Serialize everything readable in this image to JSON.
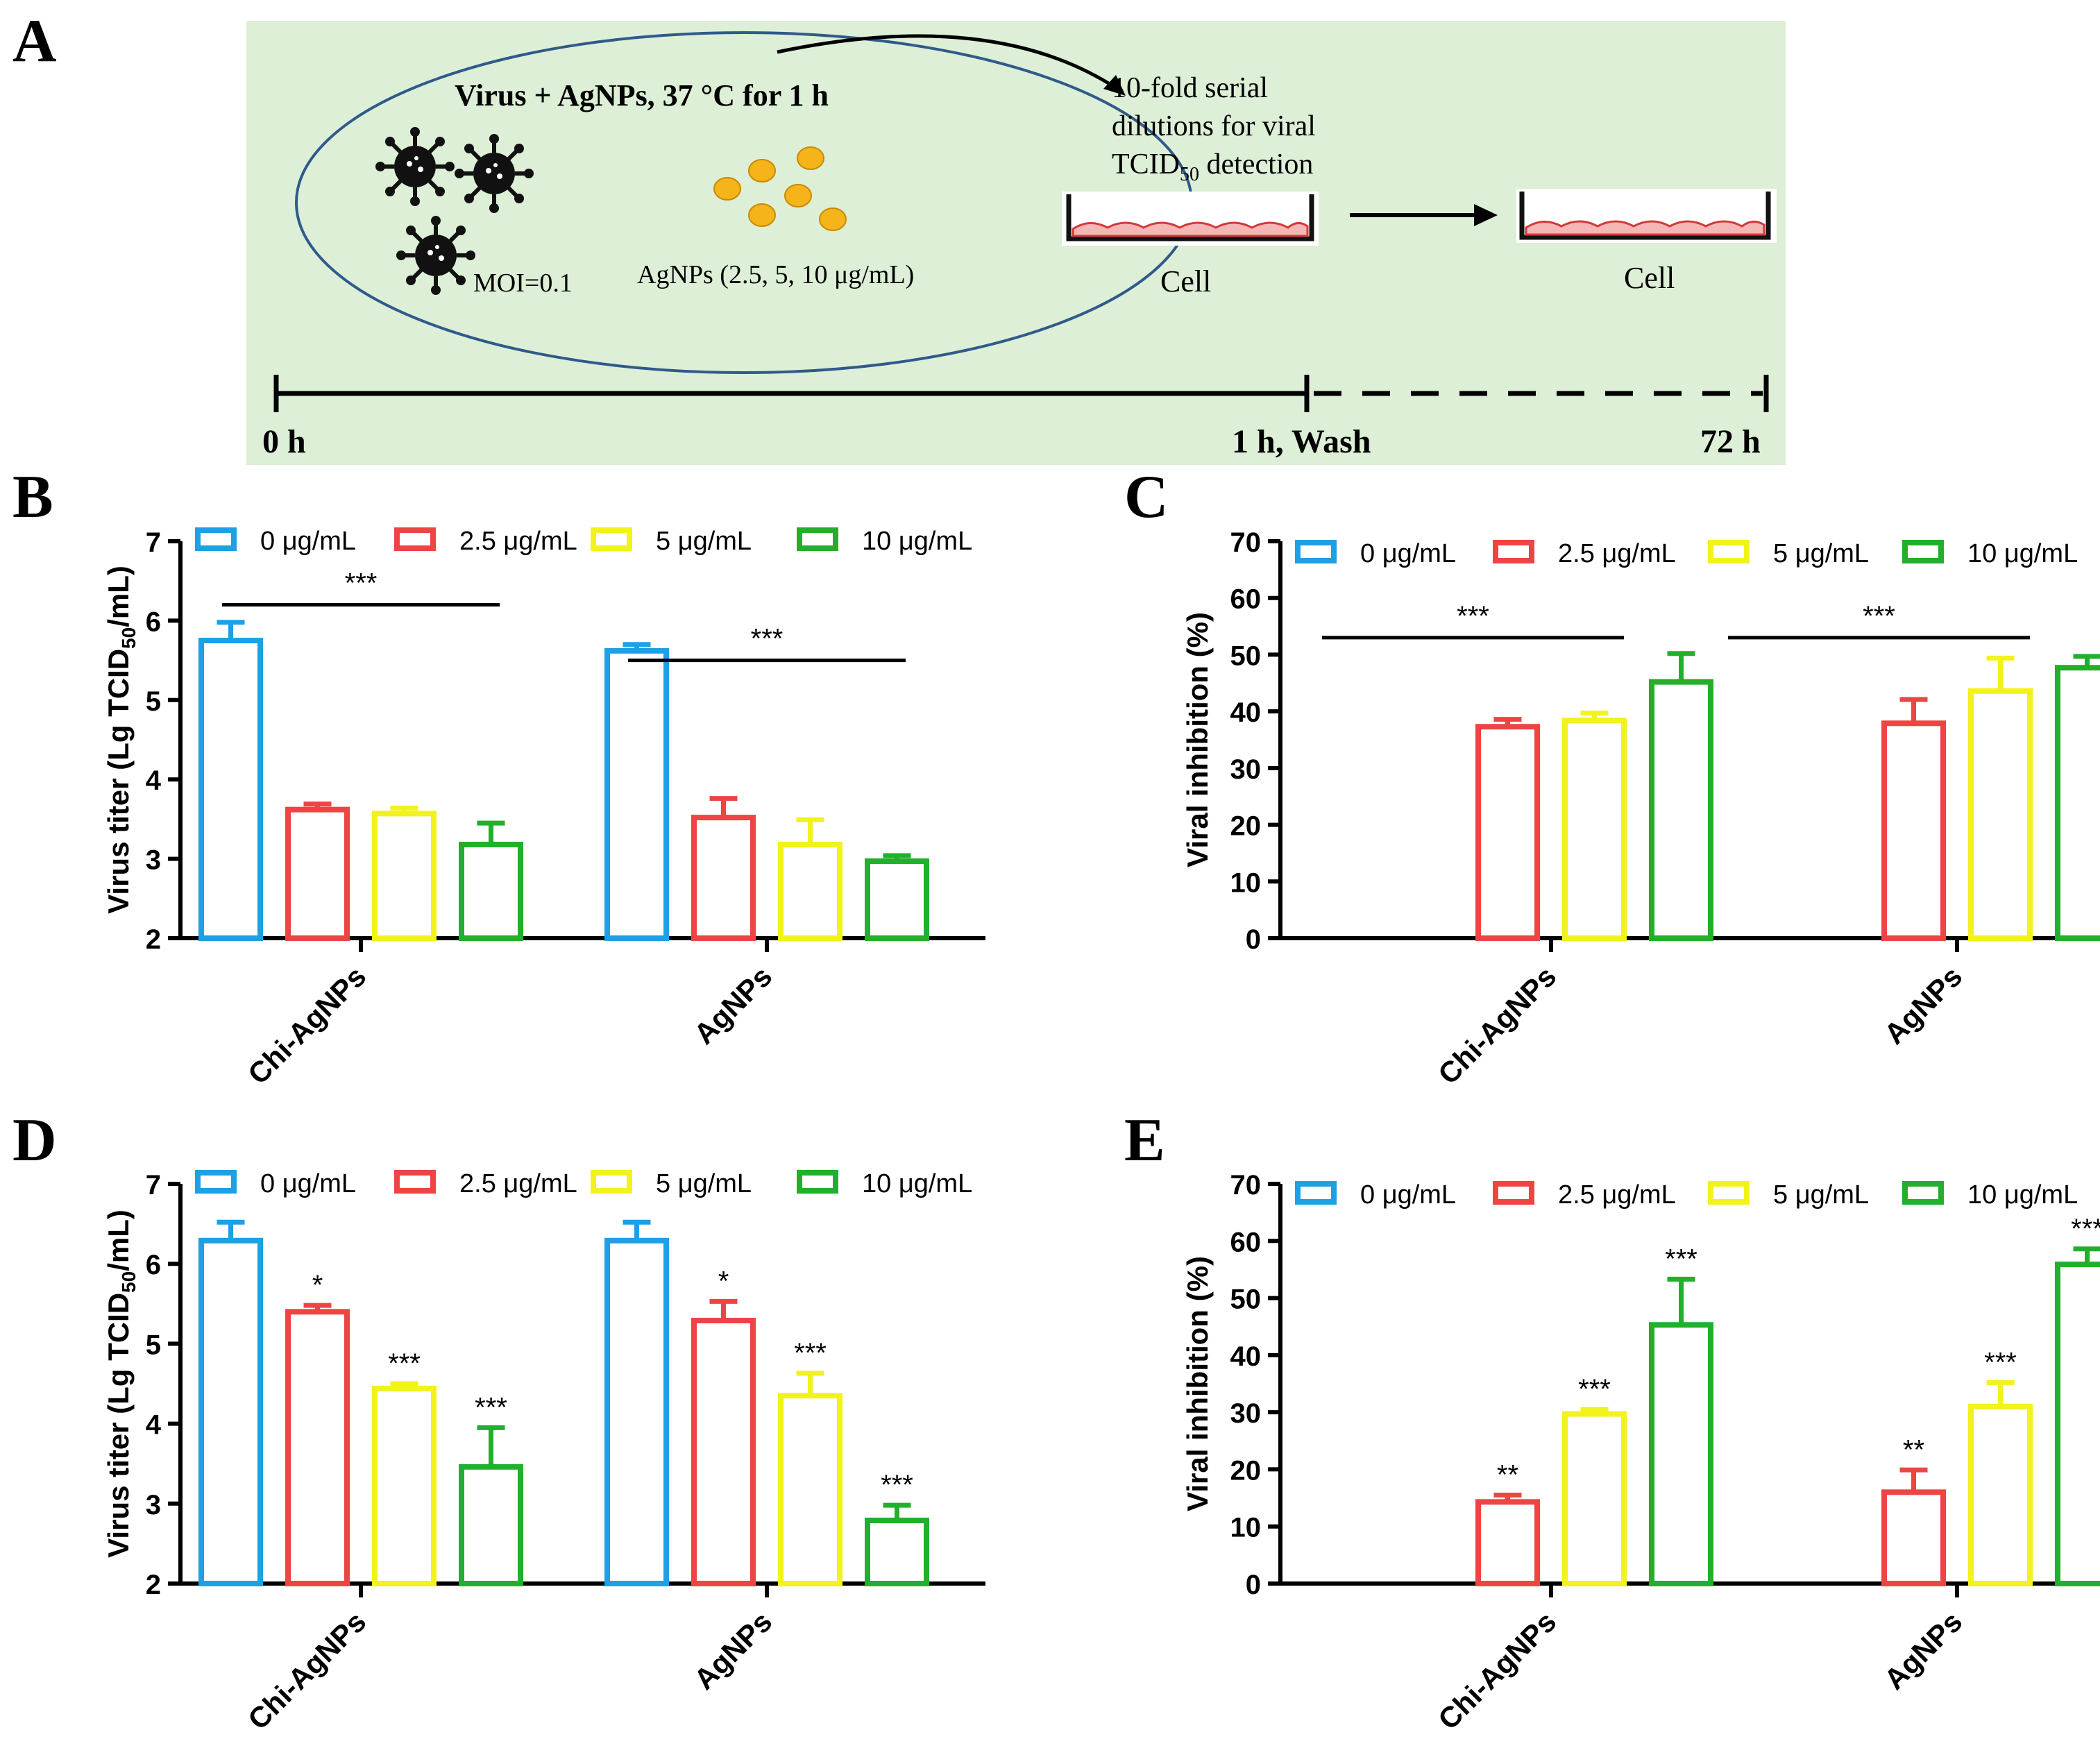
{
  "panel_letters": {
    "a": "A",
    "b": "B",
    "c": "C",
    "d": "D",
    "e": "E"
  },
  "colors": {
    "blue": "#1EA0E6",
    "red": "#EF4444",
    "yellow": "#F2F21C",
    "green": "#22B02C",
    "schematic_bg": "#DDEFD6",
    "ellipse": "#2F5A8A",
    "nanoparticle": "#F4B41A",
    "cell": "#F5B6B6"
  },
  "schematic": {
    "ellipse_title": "Virus + AgNPs, 37 °C for 1 h",
    "moi": "MOI=0.1",
    "agnps_conc": "AgNPs (2.5, 5, 10 μg/mL)",
    "dilution_line1": "10-fold serial",
    "dilution_line2": "dilutions for viral",
    "dilution_line3_pre": "TCID",
    "dilution_line3_sub": "50",
    "dilution_line3_post": " detection",
    "cell_label_1": "Cell",
    "cell_label_2": "Cell",
    "time_0": "0 h",
    "time_1": "1 h, Wash",
    "time_2": "72 h"
  },
  "legend": [
    "0 μg/mL",
    "2.5 μg/mL",
    "5 μg/mL",
    "10 μg/mL"
  ],
  "chart_data": [
    {
      "panel": "B",
      "type": "bar",
      "categories": [
        "Chi-AgNPs",
        "AgNPs"
      ],
      "ylabel_pre": "Virus titer (Lg TCID",
      "ylabel_sub": "50",
      "ylabel_post": "/mL)",
      "ylim": [
        2,
        7
      ],
      "yticks": [
        2,
        3,
        4,
        5,
        6,
        7
      ],
      "series": [
        {
          "name": "0 μg/mL",
          "values": [
            5.75,
            5.62
          ],
          "errors": [
            0.23,
            0.08
          ]
        },
        {
          "name": "2.5 μg/mL",
          "values": [
            3.62,
            3.52
          ],
          "errors": [
            0.07,
            0.24
          ]
        },
        {
          "name": "5 μg/mL",
          "values": [
            3.57,
            3.18
          ],
          "errors": [
            0.07,
            0.31
          ]
        },
        {
          "name": "10 μg/mL",
          "values": [
            3.18,
            2.97
          ],
          "errors": [
            0.27,
            0.07
          ]
        }
      ],
      "brackets": [
        {
          "group": 0,
          "y": 6.2,
          "label": "***"
        },
        {
          "group": 1,
          "y": 5.5,
          "label": "***"
        }
      ],
      "bar_labels": []
    },
    {
      "panel": "C",
      "type": "bar",
      "categories": [
        "Chi-AgNPs",
        "AgNPs"
      ],
      "ylabel_pre": "Viral inhibition (%)",
      "ylabel_sub": "",
      "ylabel_post": "",
      "ylim": [
        0,
        70
      ],
      "yticks": [
        0,
        10,
        20,
        30,
        40,
        50,
        60,
        70
      ],
      "series": [
        {
          "name": "0 μg/mL",
          "values": [
            null,
            null
          ],
          "errors": [
            0,
            0
          ]
        },
        {
          "name": "2.5 μg/mL",
          "values": [
            37.3,
            37.9
          ],
          "errors": [
            1.3,
            4.2
          ]
        },
        {
          "name": "5 μg/mL",
          "values": [
            38.4,
            43.6
          ],
          "errors": [
            1.3,
            5.8
          ]
        },
        {
          "name": "10 μg/mL",
          "values": [
            45.2,
            47.7
          ],
          "errors": [
            5.0,
            2.0
          ]
        }
      ],
      "brackets": [
        {
          "group": 0,
          "y": 53,
          "label": "***"
        },
        {
          "group": 1,
          "y": 53,
          "label": "***"
        }
      ],
      "bar_labels": []
    },
    {
      "panel": "D",
      "type": "bar",
      "categories": [
        "Chi-AgNPs",
        "AgNPs"
      ],
      "ylabel_pre": "Virus titer (Lg TCID",
      "ylabel_sub": "50",
      "ylabel_post": "/mL)",
      "ylim": [
        2,
        7
      ],
      "yticks": [
        2,
        3,
        4,
        5,
        6,
        7
      ],
      "series": [
        {
          "name": "0 μg/mL",
          "values": [
            6.29,
            6.29
          ],
          "errors": [
            0.23,
            0.23
          ],
          "labels": [
            "",
            ""
          ]
        },
        {
          "name": "2.5 μg/mL",
          "values": [
            5.4,
            5.29
          ],
          "errors": [
            0.08,
            0.24
          ],
          "labels": [
            "*",
            "*"
          ]
        },
        {
          "name": "5 μg/mL",
          "values": [
            4.44,
            4.35
          ],
          "errors": [
            0.06,
            0.28
          ],
          "labels": [
            "***",
            "***"
          ]
        },
        {
          "name": "10 μg/mL",
          "values": [
            3.46,
            2.79
          ],
          "errors": [
            0.49,
            0.19
          ],
          "labels": [
            "***",
            "***"
          ]
        }
      ],
      "brackets": []
    },
    {
      "panel": "E",
      "type": "bar",
      "categories": [
        "Chi-AgNPs",
        "AgNPs"
      ],
      "ylabel_pre": "Viral inhibition (%)",
      "ylabel_sub": "",
      "ylabel_post": "",
      "ylim": [
        0,
        70
      ],
      "yticks": [
        0,
        10,
        20,
        30,
        40,
        50,
        60,
        70
      ],
      "series": [
        {
          "name": "0 μg/mL",
          "values": [
            null,
            null
          ],
          "errors": [
            0,
            0
          ],
          "labels": [
            "",
            ""
          ]
        },
        {
          "name": "2.5 μg/mL",
          "values": [
            14.3,
            16.0
          ],
          "errors": [
            1.2,
            3.9
          ],
          "labels": [
            "**",
            "**"
          ]
        },
        {
          "name": "5 μg/mL",
          "values": [
            29.7,
            31.0
          ],
          "errors": [
            0.8,
            4.2
          ],
          "labels": [
            "***",
            "***"
          ]
        },
        {
          "name": "10 μg/mL",
          "values": [
            45.3,
            55.9
          ],
          "errors": [
            8.0,
            2.7
          ],
          "labels": [
            "***",
            "***"
          ]
        }
      ],
      "brackets": []
    }
  ]
}
